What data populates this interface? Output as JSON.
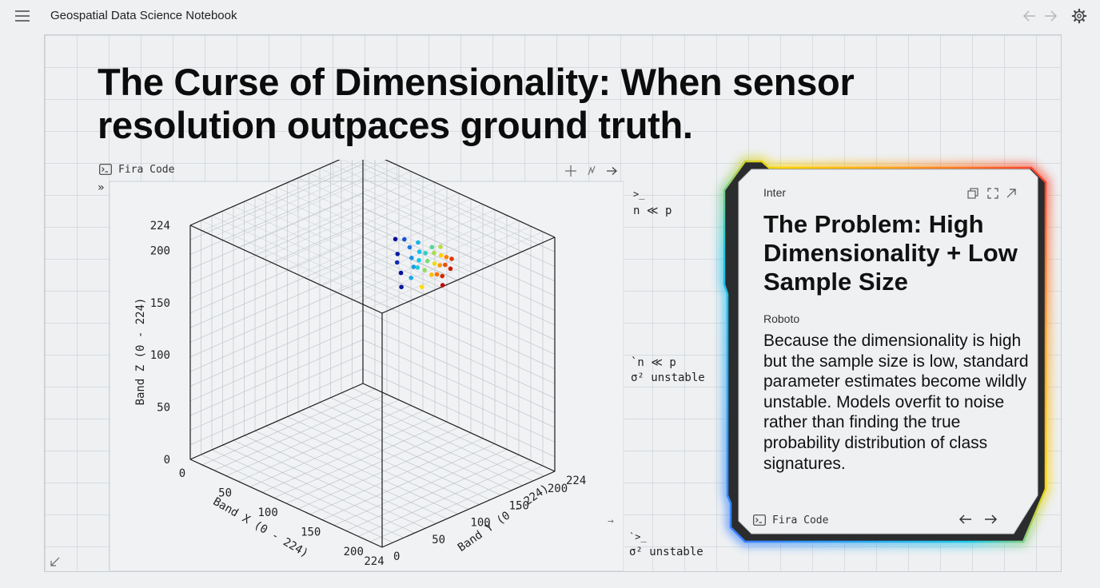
{
  "header": {
    "title": "Geospatial Data Science Notebook",
    "menu_icon": "hamburger-menu-icon",
    "back_icon": "arrow-left-icon",
    "forward_icon": "arrow-right-icon",
    "settings_icon": "gear-icon"
  },
  "slide": {
    "title_line1": "The Curse of Dimensionality: When sensor",
    "title_line2": "resolution outpaces ground truth."
  },
  "plot_panel": {
    "font_label": "Fira Code",
    "expand_marker": "»",
    "tools": [
      "crosshair-icon",
      "sparkle-icon",
      "arrow-right-icon"
    ]
  },
  "annotations": {
    "note1_prompt": ">_",
    "note1_text": "n ≪ p",
    "note2_line1": "`n ≪ p",
    "note2_line2": "σ² unstable",
    "note3_prompt": "`>_",
    "note3_text": "σ² unstable",
    "arrow": "→"
  },
  "card": {
    "title_font_label": "Inter",
    "title": "The Problem: High Dimensionality + Low Sample Size",
    "body_font_label": "Roboto",
    "body": "Because the dimensionality is high but the sample size is low, standard parameter estimates become wildly unstable. Models overfit to noise rather than finding the true probability distribution of class signatures.",
    "footer_font_label": "Fira Code",
    "icons": [
      "copy-icon",
      "fullscreen-icon",
      "open-external-icon"
    ],
    "accent_colors": [
      "#3a7bff",
      "#1ec8e6",
      "#ffd400",
      "#ff9a1f",
      "#ff3b30"
    ]
  },
  "chart_data": {
    "type": "scatter",
    "dimensions": 3,
    "xlabel": "Band X (0 - 224)",
    "ylabel": "Band Y (0 - 224)",
    "zlabel": "Band Z (0 - 224)",
    "xlim": [
      0,
      224
    ],
    "ylim": [
      0,
      224
    ],
    "zlim": [
      0,
      224
    ],
    "x_ticks": [
      "0",
      "50",
      "100",
      "150",
      "200",
      "224"
    ],
    "y_ticks": [
      "0",
      "50",
      "100",
      "150",
      "200",
      "224"
    ],
    "z_ticks": [
      "0",
      "50",
      "100",
      "150",
      "200",
      "224"
    ],
    "colormap": "jet",
    "points": [
      {
        "x": 55,
        "y": 205,
        "z": 165,
        "c": 0.02
      },
      {
        "x": 62,
        "y": 200,
        "z": 155,
        "c": 0.05
      },
      {
        "x": 66,
        "y": 195,
        "z": 150,
        "c": 0.08
      },
      {
        "x": 75,
        "y": 190,
        "z": 145,
        "c": 0.03
      },
      {
        "x": 80,
        "y": 185,
        "z": 135,
        "c": 0.04
      },
      {
        "x": 70,
        "y": 200,
        "z": 172,
        "c": 0.15
      },
      {
        "x": 78,
        "y": 198,
        "z": 168,
        "c": 0.22
      },
      {
        "x": 82,
        "y": 196,
        "z": 160,
        "c": 0.28
      },
      {
        "x": 88,
        "y": 192,
        "z": 155,
        "c": 0.3
      },
      {
        "x": 86,
        "y": 200,
        "z": 175,
        "c": 0.35
      },
      {
        "x": 92,
        "y": 195,
        "z": 170,
        "c": 0.38
      },
      {
        "x": 96,
        "y": 190,
        "z": 165,
        "c": 0.4
      },
      {
        "x": 100,
        "y": 194,
        "z": 172,
        "c": 0.45
      },
      {
        "x": 104,
        "y": 198,
        "z": 178,
        "c": 0.5
      },
      {
        "x": 98,
        "y": 186,
        "z": 160,
        "c": 0.42
      },
      {
        "x": 106,
        "y": 190,
        "z": 168,
        "c": 0.55
      },
      {
        "x": 110,
        "y": 194,
        "z": 176,
        "c": 0.6
      },
      {
        "x": 114,
        "y": 198,
        "z": 182,
        "c": 0.62
      },
      {
        "x": 108,
        "y": 184,
        "z": 162,
        "c": 0.58
      },
      {
        "x": 116,
        "y": 188,
        "z": 170,
        "c": 0.68
      },
      {
        "x": 120,
        "y": 192,
        "z": 178,
        "c": 0.72
      },
      {
        "x": 118,
        "y": 182,
        "z": 162,
        "c": 0.75
      },
      {
        "x": 124,
        "y": 186,
        "z": 172,
        "c": 0.8
      },
      {
        "x": 128,
        "y": 190,
        "z": 180,
        "c": 0.84
      },
      {
        "x": 126,
        "y": 180,
        "z": 166,
        "c": 0.86
      },
      {
        "x": 132,
        "y": 184,
        "z": 176,
        "c": 0.9
      },
      {
        "x": 136,
        "y": 188,
        "z": 182,
        "c": 0.93
      },
      {
        "x": 134,
        "y": 178,
        "z": 168,
        "c": 0.95
      },
      {
        "x": 140,
        "y": 182,
        "z": 176,
        "c": 0.97
      },
      {
        "x": 138,
        "y": 174,
        "z": 162,
        "c": 0.99
      },
      {
        "x": 112,
        "y": 176,
        "z": 150,
        "c": 0.7
      },
      {
        "x": 94,
        "y": 182,
        "z": 150,
        "c": 0.33
      }
    ]
  }
}
